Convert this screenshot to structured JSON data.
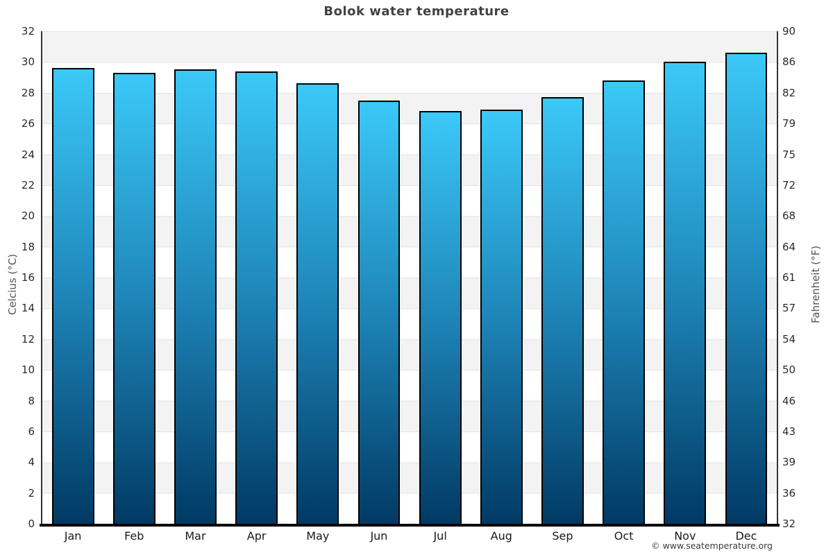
{
  "page": {
    "title": "Bolok water temperature",
    "footer": "© www.seatemperature.org"
  },
  "chart_data": {
    "type": "bar",
    "title": "Bolok water temperature",
    "categories": [
      "Jan",
      "Feb",
      "Mar",
      "Apr",
      "May",
      "Jun",
      "Jul",
      "Aug",
      "Sep",
      "Oct",
      "Nov",
      "Dec"
    ],
    "values": [
      29.6,
      29.3,
      29.5,
      29.4,
      28.6,
      27.5,
      26.8,
      26.9,
      27.7,
      28.8,
      30.0,
      30.6
    ],
    "unit": "°C",
    "ylabel_left": "Celcius (°C)",
    "ylabel_right": "Fahrenheit (°F)",
    "ylim": [
      0,
      32
    ],
    "yticks_celsius": [
      32,
      30,
      28,
      26,
      24,
      22,
      20,
      18,
      16,
      14,
      12,
      10,
      8,
      6,
      4,
      2,
      0
    ],
    "yticks_fahrenheit": [
      90,
      86,
      82,
      79,
      75,
      72,
      68,
      64,
      61,
      57,
      54,
      50,
      46,
      43,
      39,
      36,
      32
    ],
    "legend": "none",
    "grid": "alternating horizontal bands every 2 degrees C, gray starting at top (32-30)",
    "colors": {
      "bar_gradient_top": "#3bc9f8",
      "bar_gradient_mid": "#1e85b8",
      "bar_gradient_bottom": "#013a64",
      "bar_border": "#000000",
      "band_gray": "#f3f3f3",
      "band_white": "#ffffff",
      "gridline": "#e3e3e3",
      "axis_line": "#333333",
      "baseline": "#000000",
      "title_color": "#3f4245",
      "tick_color": "#2b2b2b",
      "month_color": "#1a1a1a",
      "footer_color": "#3a3a3a"
    }
  }
}
